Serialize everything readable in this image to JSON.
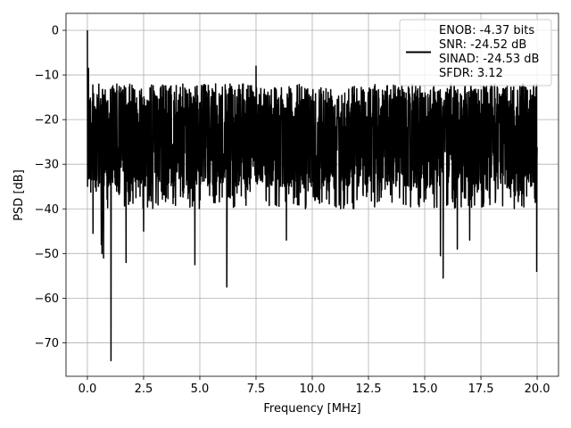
{
  "chart_data": {
    "type": "line",
    "title": "",
    "xlabel": "Frequency [MHz]",
    "ylabel": "PSD [dB]",
    "xlim": [
      -0.95,
      20.95
    ],
    "ylim": [
      -77.5,
      3.8
    ],
    "xticks": [
      0.0,
      2.5,
      5.0,
      7.5,
      10.0,
      12.5,
      15.0,
      17.5,
      20.0
    ],
    "xtick_labels": [
      "0.0",
      "2.5",
      "5.0",
      "7.5",
      "10.0",
      "12.5",
      "15.0",
      "17.5",
      "20.0"
    ],
    "yticks": [
      0,
      -10,
      -20,
      -30,
      -40,
      -50,
      -60,
      -70
    ],
    "ytick_labels": [
      "0",
      "−10",
      "−20",
      "−30",
      "−40",
      "−50",
      "−60",
      "−70"
    ],
    "grid": true,
    "legend_position": "top-right",
    "legend": {
      "lines": [
        "ENOB: -4.37 bits",
        "SNR: -24.52 dB",
        "SINAD: -24.53 dB",
        "SFDR: 3.12"
      ],
      "color": "#000000"
    },
    "series": [
      {
        "color": "#000000",
        "noise_floor_top_approx_db": -12,
        "noise_floor_mean_approx_db": -25,
        "noise_floor_bottom_approx_db": -40,
        "peaks": [
          {
            "x": 0.0,
            "y": 0.0
          },
          {
            "x": 0.02,
            "y": -23.0
          },
          {
            "x": 0.05,
            "y": -8.5
          },
          {
            "x": 0.25,
            "y": -45.5
          },
          {
            "x": 0.62,
            "y": -48.0
          },
          {
            "x": 0.65,
            "y": -50.0
          },
          {
            "x": 0.72,
            "y": -51.0
          },
          {
            "x": 1.05,
            "y": -74.0
          },
          {
            "x": 1.72,
            "y": -52.0
          },
          {
            "x": 2.5,
            "y": -45.0
          },
          {
            "x": 4.78,
            "y": -52.5
          },
          {
            "x": 6.2,
            "y": -57.5
          },
          {
            "x": 7.5,
            "y": -8.0
          },
          {
            "x": 8.85,
            "y": -47.0
          },
          {
            "x": 15.7,
            "y": -50.5
          },
          {
            "x": 15.82,
            "y": -55.5
          },
          {
            "x": 16.45,
            "y": -49.0
          },
          {
            "x": 17.0,
            "y": -47.0
          },
          {
            "x": 19.98,
            "y": -54.0
          }
        ]
      }
    ]
  }
}
